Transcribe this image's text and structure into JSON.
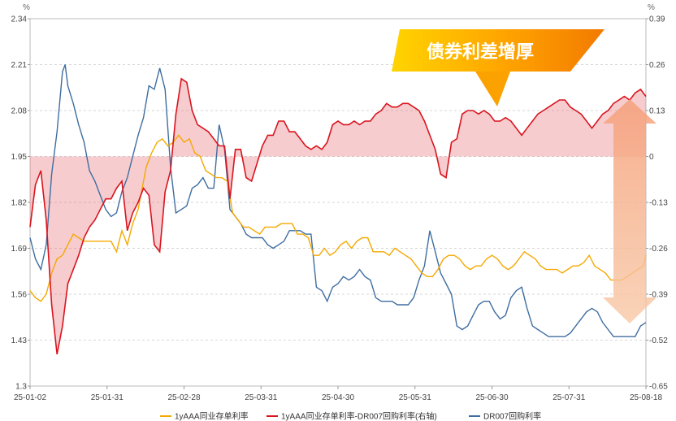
{
  "chart_data": {
    "type": "line",
    "y_left": {
      "unit": "%",
      "ylim": [
        1.3,
        2.34
      ],
      "ticks": [
        "1.3",
        "1.43",
        "1.56",
        "1.69",
        "1.82",
        "1.95",
        "2.08",
        "2.21",
        "2.34"
      ]
    },
    "y_right": {
      "unit": "%",
      "ylim": [
        -0.65,
        0.39
      ],
      "ticks": [
        "-0.65",
        "-0.52",
        "-0.39",
        "-0.26",
        "-0.13",
        "0",
        "0.13",
        "0.26",
        "0.39"
      ]
    },
    "x_ticks": [
      "25-01-02",
      "25-01-31",
      "25-02-28",
      "25-03-31",
      "25-04-30",
      "25-05-31",
      "25-06-30",
      "25-07-31",
      "25-08-18"
    ],
    "grid": true,
    "legend_position": "bottom",
    "annotation": "债券利差增厚",
    "series": [
      {
        "name": "1yAAA同业存单利率",
        "axis": "left",
        "color": "#F5A800",
        "x": [
          0,
          2,
          4,
          6,
          8,
          10,
          12,
          14,
          16,
          18,
          20,
          22,
          24,
          26,
          28,
          30,
          32,
          34,
          36,
          38,
          40,
          41,
          43,
          45,
          47,
          49,
          51,
          53,
          55,
          57,
          59,
          61,
          63,
          65,
          67,
          69,
          71,
          73,
          75,
          77,
          79,
          81,
          83,
          85,
          87,
          89,
          91,
          93,
          95,
          97,
          99,
          101,
          103,
          105,
          107,
          109,
          111,
          113,
          115,
          117,
          119,
          121,
          123,
          125,
          127,
          129,
          131,
          133,
          135,
          137,
          139,
          141,
          143,
          145,
          147,
          149,
          151,
          153,
          155,
          157,
          159,
          161,
          163,
          165,
          167,
          169,
          171,
          173,
          175,
          177,
          179,
          181,
          183,
          185,
          187,
          189,
          191,
          193,
          195,
          197,
          199,
          201,
          203,
          205,
          207,
          209,
          211,
          213,
          215,
          217,
          219,
          221,
          223,
          225,
          227,
          228
        ],
        "y": [
          1.57,
          1.55,
          1.54,
          1.56,
          1.62,
          1.66,
          1.67,
          1.7,
          1.73,
          1.72,
          1.71,
          1.71,
          1.71,
          1.71,
          1.71,
          1.71,
          1.68,
          1.74,
          1.7,
          1.76,
          1.8,
          1.84,
          1.92,
          1.96,
          1.99,
          2.0,
          1.98,
          1.99,
          2.01,
          1.99,
          2.0,
          1.96,
          1.95,
          1.91,
          1.9,
          1.89,
          1.89,
          1.88,
          1.79,
          1.77,
          1.75,
          1.75,
          1.74,
          1.73,
          1.75,
          1.75,
          1.75,
          1.76,
          1.76,
          1.76,
          1.73,
          1.73,
          1.72,
          1.67,
          1.67,
          1.69,
          1.67,
          1.68,
          1.7,
          1.71,
          1.69,
          1.71,
          1.72,
          1.72,
          1.68,
          1.68,
          1.68,
          1.67,
          1.69,
          1.68,
          1.67,
          1.66,
          1.64,
          1.62,
          1.61,
          1.61,
          1.63,
          1.66,
          1.67,
          1.67,
          1.66,
          1.64,
          1.63,
          1.64,
          1.64,
          1.66,
          1.67,
          1.66,
          1.64,
          1.63,
          1.64,
          1.66,
          1.68,
          1.67,
          1.66,
          1.64,
          1.63,
          1.63,
          1.63,
          1.62,
          1.63,
          1.64,
          1.64,
          1.65,
          1.67,
          1.64,
          1.63,
          1.62,
          1.6,
          1.6,
          1.6,
          1.61,
          1.62,
          1.63,
          1.64,
          1.67
        ]
      },
      {
        "name": "1yAAA同业存单利率-DR007回购利率(右轴)",
        "axis": "right",
        "color": "#D9141E",
        "fill": "rgba(229,100,110,0.33)",
        "x": [
          0,
          2,
          4,
          6,
          8,
          10,
          12,
          14,
          16,
          18,
          20,
          22,
          24,
          26,
          28,
          30,
          32,
          34,
          36,
          38,
          40,
          42,
          44,
          46,
          48,
          50,
          52,
          54,
          56,
          58,
          60,
          62,
          64,
          66,
          68,
          70,
          72,
          74,
          76,
          78,
          80,
          82,
          84,
          86,
          88,
          90,
          92,
          94,
          96,
          98,
          100,
          102,
          104,
          106,
          108,
          110,
          112,
          114,
          116,
          118,
          120,
          122,
          124,
          126,
          128,
          130,
          132,
          134,
          136,
          138,
          140,
          142,
          144,
          146,
          148,
          150,
          152,
          154,
          156,
          158,
          160,
          162,
          164,
          166,
          168,
          170,
          172,
          174,
          176,
          178,
          180,
          182,
          184,
          186,
          188,
          190,
          192,
          194,
          196,
          198,
          200,
          202,
          204,
          206,
          208,
          210,
          212,
          214,
          216,
          218,
          220,
          222,
          224,
          226,
          228
        ],
        "y": [
          -0.2,
          -0.08,
          -0.04,
          -0.18,
          -0.42,
          -0.56,
          -0.48,
          -0.36,
          -0.32,
          -0.28,
          -0.23,
          -0.2,
          -0.18,
          -0.15,
          -0.12,
          -0.12,
          -0.09,
          -0.07,
          -0.21,
          -0.16,
          -0.13,
          -0.09,
          -0.11,
          -0.25,
          -0.27,
          -0.1,
          -0.04,
          0.12,
          0.22,
          0.21,
          0.13,
          0.09,
          0.08,
          0.07,
          0.05,
          0.03,
          0.03,
          -0.12,
          0.02,
          0.02,
          -0.06,
          -0.07,
          -0.02,
          0.03,
          0.06,
          0.06,
          0.1,
          0.1,
          0.07,
          0.07,
          0.05,
          0.03,
          0.02,
          0.03,
          0.02,
          0.04,
          0.09,
          0.1,
          0.09,
          0.09,
          0.1,
          0.09,
          0.1,
          0.1,
          0.12,
          0.13,
          0.15,
          0.14,
          0.14,
          0.15,
          0.15,
          0.14,
          0.13,
          0.1,
          0.06,
          0.02,
          -0.05,
          -0.06,
          0.04,
          0.05,
          0.12,
          0.13,
          0.13,
          0.12,
          0.13,
          0.12,
          0.1,
          0.1,
          0.11,
          0.1,
          0.08,
          0.06,
          0.08,
          0.1,
          0.12,
          0.13,
          0.14,
          0.15,
          0.16,
          0.16,
          0.14,
          0.13,
          0.12,
          0.1,
          0.08,
          0.1,
          0.12,
          0.13,
          0.15,
          0.16,
          0.17,
          0.16,
          0.18,
          0.19,
          0.17
        ]
      },
      {
        "name": "DR007回购利率",
        "axis": "left",
        "color": "#3F6DA0",
        "x": [
          0,
          2,
          4,
          6,
          8,
          10,
          12,
          13,
          14,
          16,
          18,
          20,
          22,
          24,
          26,
          28,
          30,
          32,
          34,
          36,
          38,
          40,
          42,
          44,
          46,
          48,
          50,
          52,
          54,
          56,
          58,
          60,
          62,
          64,
          66,
          68,
          70,
          72,
          74,
          76,
          78,
          80,
          82,
          84,
          86,
          88,
          90,
          92,
          94,
          96,
          98,
          100,
          102,
          104,
          106,
          108,
          110,
          112,
          114,
          116,
          118,
          120,
          122,
          124,
          126,
          128,
          130,
          132,
          134,
          136,
          138,
          140,
          142,
          144,
          146,
          148,
          150,
          152,
          154,
          156,
          158,
          160,
          162,
          164,
          166,
          168,
          170,
          172,
          174,
          176,
          178,
          180,
          182,
          184,
          186,
          188,
          190,
          192,
          194,
          196,
          198,
          200,
          202,
          204,
          206,
          208,
          210,
          212,
          214,
          216,
          218,
          220,
          222,
          224,
          226,
          228
        ],
        "y": [
          1.72,
          1.66,
          1.63,
          1.7,
          1.9,
          2.02,
          2.19,
          2.21,
          2.15,
          2.1,
          2.04,
          1.99,
          1.91,
          1.88,
          1.84,
          1.8,
          1.78,
          1.79,
          1.85,
          1.89,
          1.95,
          2.01,
          2.06,
          2.15,
          2.14,
          2.2,
          2.14,
          1.92,
          1.79,
          1.8,
          1.81,
          1.86,
          1.87,
          1.89,
          1.86,
          1.86,
          2.04,
          1.97,
          1.8,
          1.78,
          1.76,
          1.73,
          1.72,
          1.72,
          1.72,
          1.7,
          1.69,
          1.7,
          1.71,
          1.74,
          1.74,
          1.74,
          1.73,
          1.73,
          1.58,
          1.57,
          1.54,
          1.58,
          1.59,
          1.61,
          1.6,
          1.61,
          1.63,
          1.61,
          1.6,
          1.55,
          1.54,
          1.54,
          1.54,
          1.53,
          1.53,
          1.53,
          1.55,
          1.6,
          1.64,
          1.74,
          1.68,
          1.62,
          1.59,
          1.56,
          1.47,
          1.46,
          1.47,
          1.5,
          1.53,
          1.54,
          1.54,
          1.51,
          1.49,
          1.5,
          1.55,
          1.57,
          1.58,
          1.52,
          1.47,
          1.46,
          1.45,
          1.44,
          1.44,
          1.44,
          1.44,
          1.45,
          1.47,
          1.49,
          1.51,
          1.52,
          1.51,
          1.48,
          1.46,
          1.44,
          1.44,
          1.44,
          1.44,
          1.44,
          1.47,
          1.48
        ]
      }
    ]
  }
}
